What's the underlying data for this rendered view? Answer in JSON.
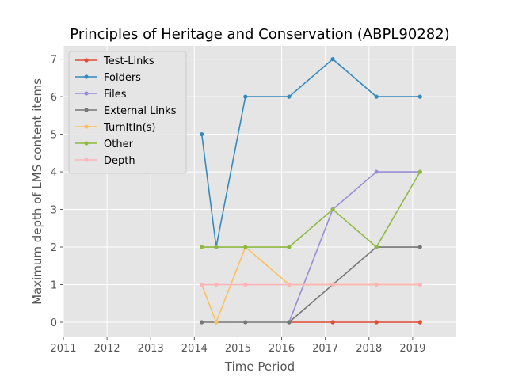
{
  "chart_data": {
    "type": "line",
    "title": "Principles of Heritage and Conservation (ABPL90282)",
    "xlabel": "Time Period",
    "ylabel": "Maximum depth of LMS content items",
    "xlim": [
      2011,
      2020
    ],
    "ylim": [
      -0.4,
      7.35
    ],
    "xticks": [
      "2011",
      "2012",
      "2013",
      "2014",
      "2015",
      "2016",
      "2017",
      "2018",
      "2019"
    ],
    "yticks": [
      "0",
      "1",
      "2",
      "3",
      "4",
      "5",
      "6",
      "7"
    ],
    "grid": true,
    "legend_position": "upper-left",
    "series": [
      {
        "name": "Test-Links",
        "color": "#E24A33",
        "x": [
          2016.17,
          2017.17,
          2018.17,
          2019.17
        ],
        "y": [
          0,
          0,
          0,
          0
        ]
      },
      {
        "name": "Folders",
        "color": "#348ABD",
        "x": [
          2014.17,
          2014.5,
          2015.17,
          2016.17,
          2017.17,
          2018.17,
          2019.17
        ],
        "y": [
          5,
          2,
          6,
          6,
          7,
          6,
          6
        ]
      },
      {
        "name": "Files",
        "color": "#988ED5",
        "x": [
          2016.17,
          2017.17,
          2018.17,
          2019.17
        ],
        "y": [
          0,
          3,
          4,
          4
        ]
      },
      {
        "name": "External Links",
        "color": "#777777",
        "x": [
          2014.17,
          2014.5,
          2015.17,
          2016.17,
          2017.17,
          2018.17,
          2019.17
        ],
        "y": [
          0,
          0,
          0,
          0,
          1,
          2,
          2
        ]
      },
      {
        "name": "TurnItIn(s)",
        "color": "#FBC15E",
        "x": [
          2014.17,
          2014.5,
          2015.17,
          2016.17,
          2017.17,
          2018.17,
          2019.17
        ],
        "y": [
          1,
          0,
          2,
          1,
          1,
          1,
          1
        ]
      },
      {
        "name": "Other",
        "color": "#8EBA42",
        "x": [
          2014.17,
          2014.5,
          2015.17,
          2016.17,
          2017.17,
          2018.17,
          2019.17
        ],
        "y": [
          2,
          2,
          2,
          2,
          3,
          2,
          4
        ]
      },
      {
        "name": "Depth",
        "color": "#FFB5B8",
        "x": [
          2014.17,
          2014.5,
          2015.17,
          2016.17,
          2017.17,
          2018.17,
          2019.17
        ],
        "y": [
          1,
          1,
          1,
          1,
          1,
          1,
          1
        ]
      }
    ]
  }
}
